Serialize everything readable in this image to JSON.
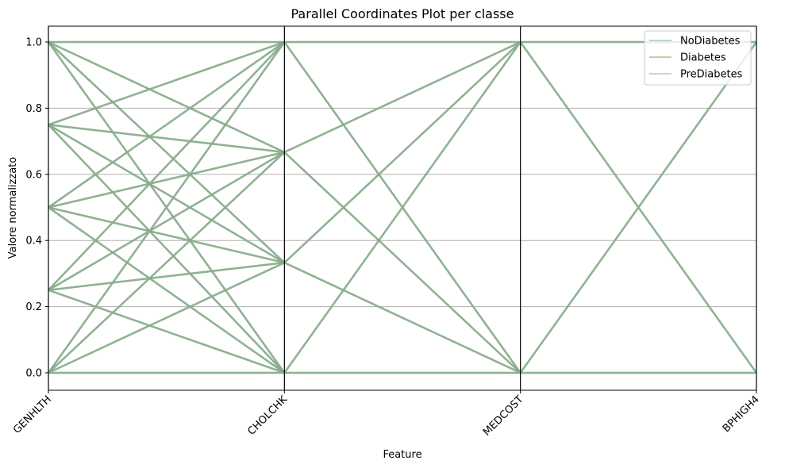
{
  "chart_data": {
    "type": "parallel_coordinates",
    "title": "Parallel Coordinates Plot per classe",
    "xlabel": "Feature",
    "ylabel": "Valore normalizzato",
    "categories": [
      "GENHLTH",
      "CHOLCHK",
      "MEDCOST",
      "BPHIGH4"
    ],
    "ylim": [
      0,
      1
    ],
    "yticks": [
      "0.0",
      "0.2",
      "0.4",
      "0.6",
      "0.8",
      "1.0"
    ],
    "grid": "horizontal",
    "legend_position": "top-right",
    "series": [
      {
        "name": "NoDiabetes",
        "color": "#8fb1a0"
      },
      {
        "name": "Diabetes",
        "color": "#7fb24a"
      },
      {
        "name": "PreDiabetes",
        "color": "#c89ac8"
      }
    ],
    "segments": {
      "GENHLTH-CHOLCHK": [
        [
          1,
          1
        ],
        [
          1,
          0.667
        ],
        [
          1,
          0.333
        ],
        [
          1,
          0
        ],
        [
          0.75,
          1
        ],
        [
          0.75,
          0.667
        ],
        [
          0.75,
          0.333
        ],
        [
          0.75,
          0
        ],
        [
          0.5,
          1
        ],
        [
          0.5,
          0.667
        ],
        [
          0.5,
          0.333
        ],
        [
          0.5,
          0
        ],
        [
          0.25,
          1
        ],
        [
          0.25,
          0.667
        ],
        [
          0.25,
          0.333
        ],
        [
          0.25,
          0
        ],
        [
          0,
          1
        ],
        [
          0,
          0.667
        ],
        [
          0,
          0.333
        ],
        [
          0,
          0
        ]
      ],
      "CHOLCHK-MEDCOST": [
        [
          1,
          1
        ],
        [
          1,
          0
        ],
        [
          0.667,
          1
        ],
        [
          0.667,
          0
        ],
        [
          0.333,
          1
        ],
        [
          0.333,
          0
        ],
        [
          0,
          1
        ],
        [
          0,
          0
        ]
      ],
      "MEDCOST-BPHIGH4": [
        [
          1,
          1
        ],
        [
          1,
          0
        ],
        [
          0,
          1
        ],
        [
          0,
          0
        ]
      ]
    }
  }
}
